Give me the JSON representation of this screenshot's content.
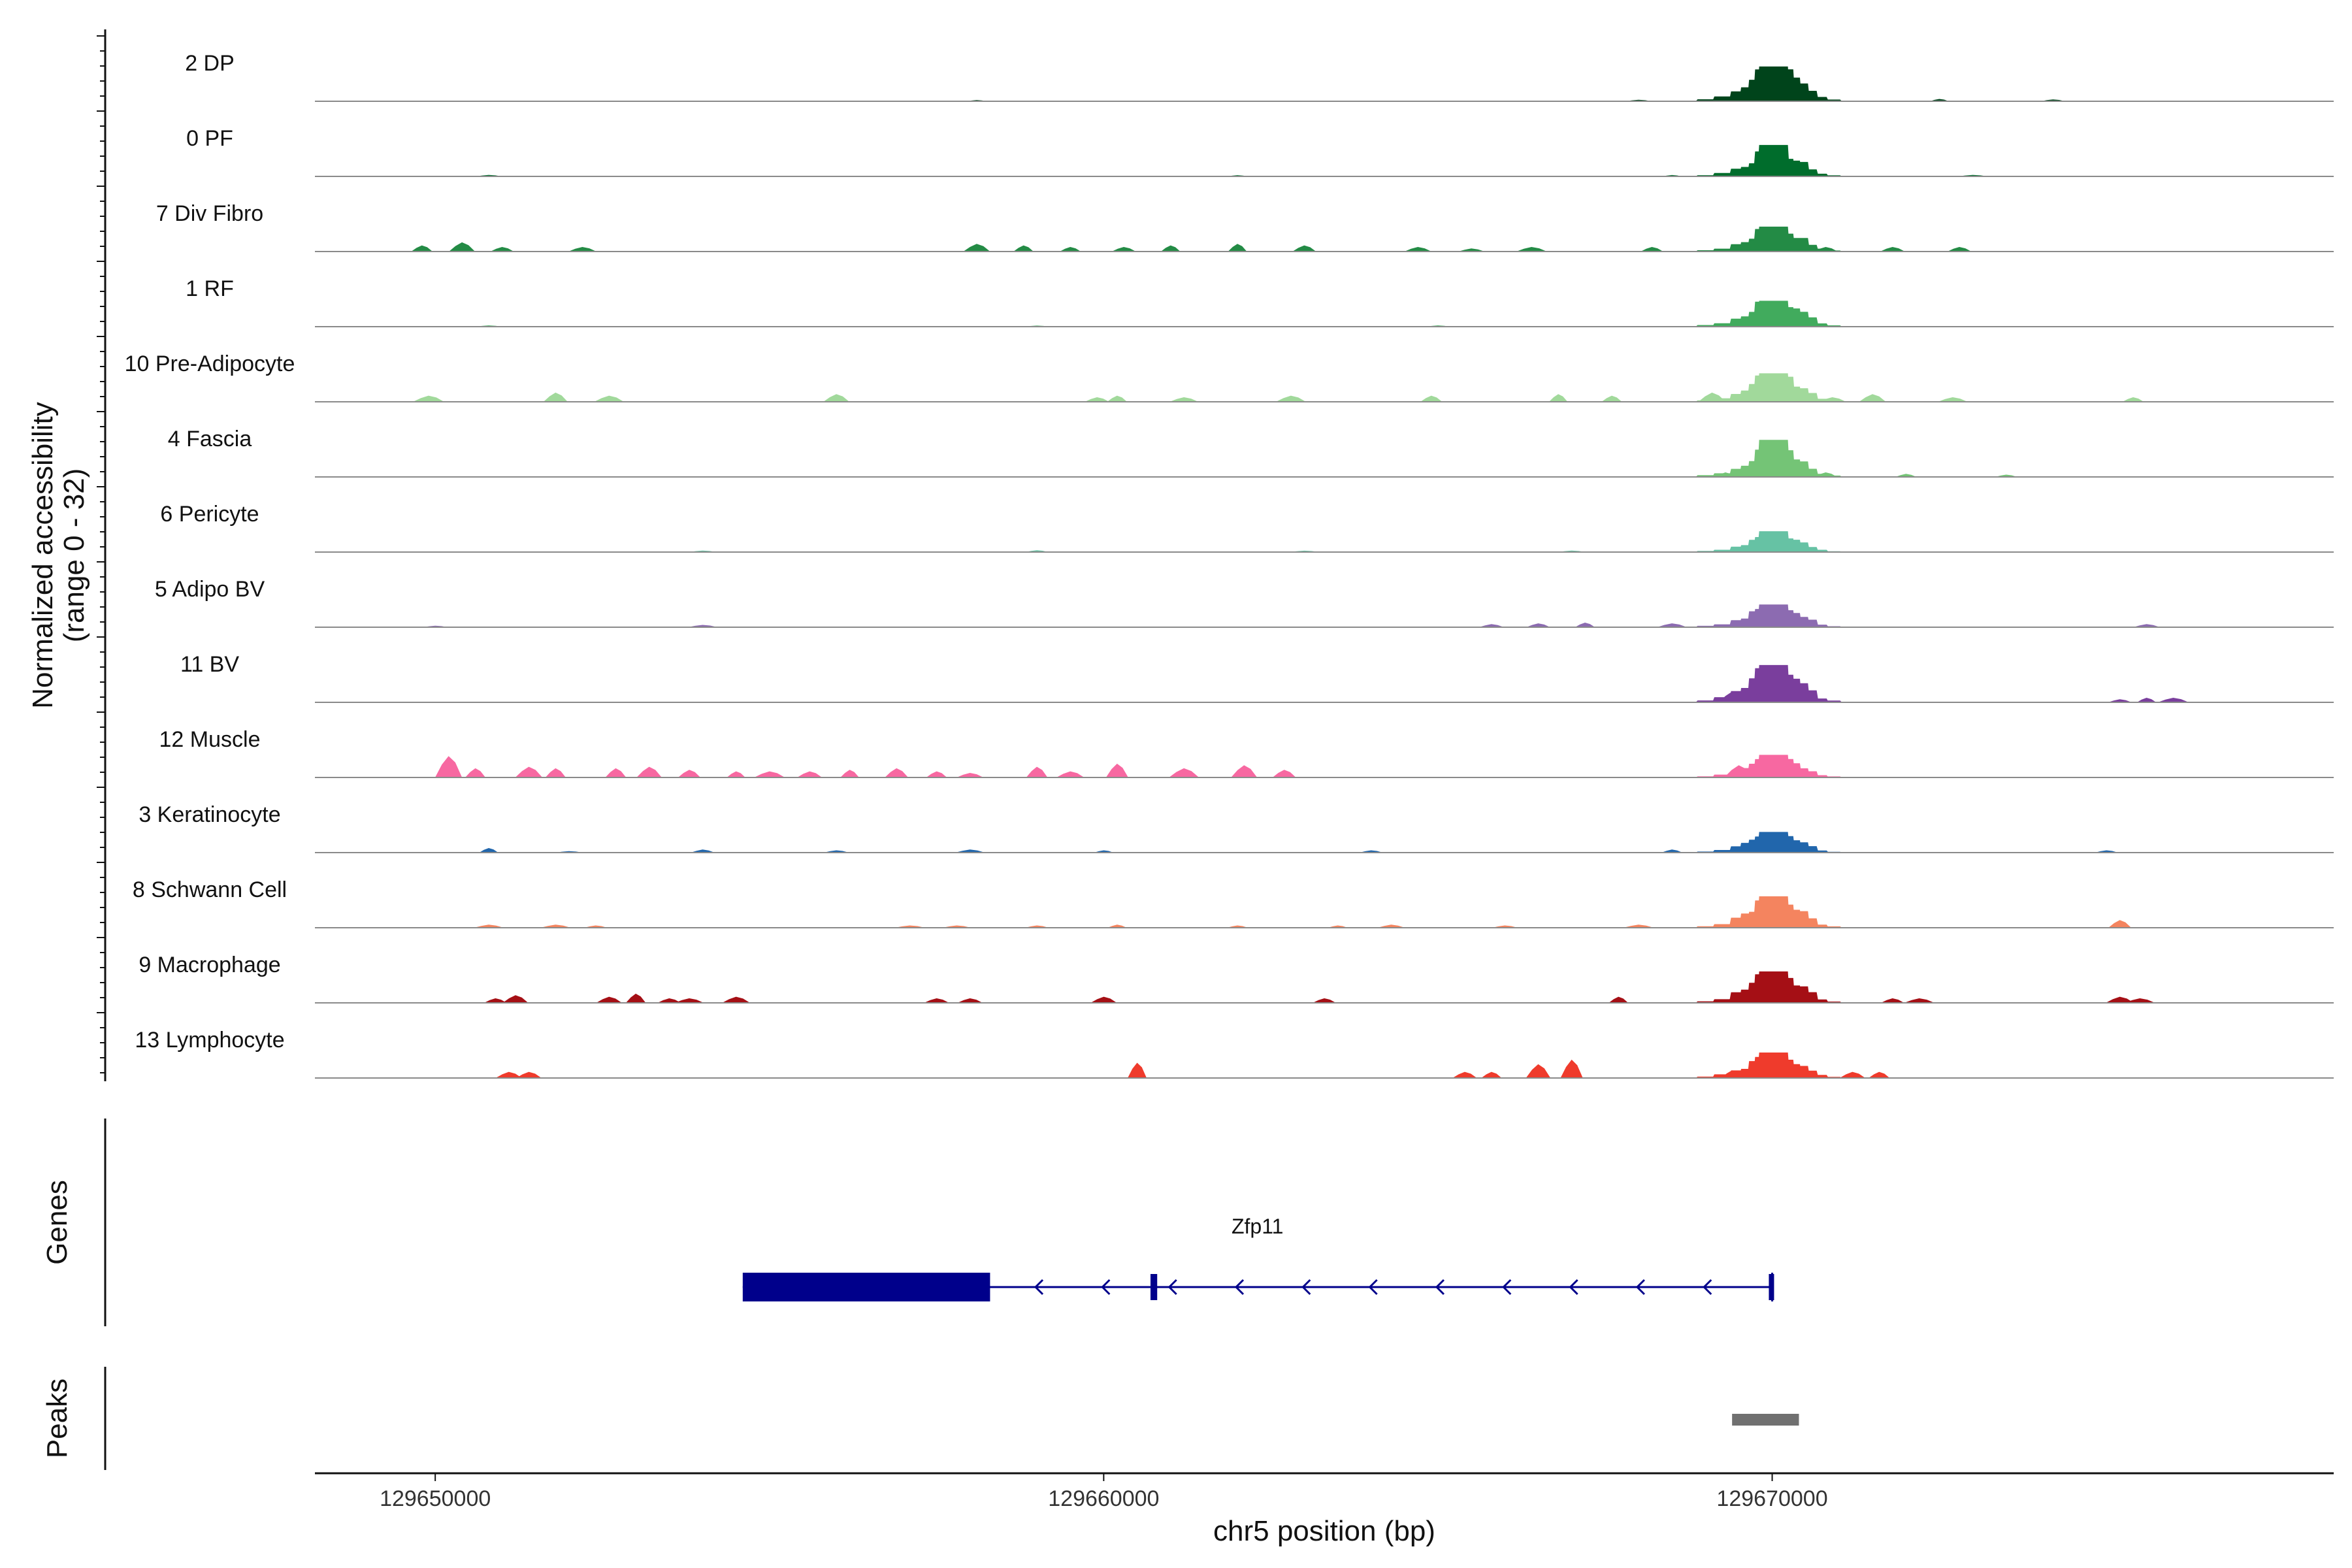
{
  "chart_data": {
    "type": "area",
    "title": "",
    "ylabel_line1": "Normalized accessibility",
    "ylabel_line2": "(range 0 - 32)",
    "yrange": [
      0,
      32
    ],
    "xlabel": "chr5 position (bp)",
    "xlim": [
      129648200,
      129678400
    ],
    "xticks": [
      129650000,
      129660000,
      129670000
    ],
    "xtick_labels": [
      "129650000",
      "129660000",
      "129670000"
    ],
    "tracks": [
      {
        "name": "2 DP",
        "color": "#00441b",
        "main_peak": 26,
        "minor": [
          [
            129672500,
            1.5
          ],
          [
            129674200,
            1.2
          ],
          [
            129658100,
            0.8
          ],
          [
            129668000,
            1.0
          ]
        ]
      },
      {
        "name": "0 PF",
        "color": "#006d2c",
        "main_peak": 18,
        "minor": [
          [
            129650800,
            1.0
          ],
          [
            129662000,
            0.8
          ],
          [
            129668500,
            0.9
          ],
          [
            129673000,
            1.0
          ]
        ]
      },
      {
        "name": "7 Div Fibro",
        "color": "#238b45",
        "main_peak": 17,
        "minor": [
          [
            129649800,
            4
          ],
          [
            129650400,
            6
          ],
          [
            129651000,
            3
          ],
          [
            129652200,
            3
          ],
          [
            129658100,
            5
          ],
          [
            129658800,
            4
          ],
          [
            129659500,
            3
          ],
          [
            129660300,
            3
          ],
          [
            129661000,
            4
          ],
          [
            129662000,
            5
          ],
          [
            129663000,
            4
          ],
          [
            129664700,
            3
          ],
          [
            129665500,
            2
          ],
          [
            129666400,
            3
          ],
          [
            129668200,
            3
          ],
          [
            129670800,
            3
          ],
          [
            129671800,
            3
          ],
          [
            129672800,
            3
          ]
        ]
      },
      {
        "name": "1 RF",
        "color": "#41ab5d",
        "main_peak": 19,
        "minor": [
          [
            129650800,
            0.8
          ],
          [
            129659000,
            0.7
          ],
          [
            129665000,
            0.8
          ],
          [
            129670200,
            0.6
          ]
        ]
      },
      {
        "name": "10 Pre-Adipocyte",
        "color": "#a1d99b",
        "main_peak": 20,
        "minor": [
          [
            129649900,
            4
          ],
          [
            129651800,
            6
          ],
          [
            129652600,
            4
          ],
          [
            129656000,
            5
          ],
          [
            129659900,
            3
          ],
          [
            129660200,
            4
          ],
          [
            129661200,
            3
          ],
          [
            129662800,
            4
          ],
          [
            129664900,
            4
          ],
          [
            129666800,
            5
          ],
          [
            129667600,
            4
          ],
          [
            129669100,
            6
          ],
          [
            129670900,
            3
          ],
          [
            129671500,
            5
          ],
          [
            129672700,
            3
          ],
          [
            129675400,
            3
          ]
        ]
      },
      {
        "name": "4 Fascia",
        "color": "#74c476",
        "main_peak": 22,
        "minor": [
          [
            129669300,
            3
          ],
          [
            129670800,
            3
          ],
          [
            129672000,
            2
          ],
          [
            129673500,
            1.5
          ]
        ]
      },
      {
        "name": "6 Pericyte",
        "color": "#66c2a4",
        "main_peak": 14,
        "minor": [
          [
            129654000,
            1
          ],
          [
            129659000,
            1.2
          ],
          [
            129663000,
            0.9
          ],
          [
            129667000,
            1
          ]
        ]
      },
      {
        "name": "5 Adipo BV",
        "color": "#8c6bb1",
        "main_peak": 17,
        "minor": [
          [
            129650000,
            1
          ],
          [
            129654000,
            1.5
          ],
          [
            129665800,
            2
          ],
          [
            129666500,
            2.5
          ],
          [
            129667200,
            3
          ],
          [
            129668500,
            2.5
          ],
          [
            129675600,
            2
          ]
        ]
      },
      {
        "name": "11 BV",
        "color": "#7a3e9d",
        "main_peak": 25,
        "minor": [
          [
            129669400,
            7
          ],
          [
            129669800,
            6
          ],
          [
            129675200,
            2
          ],
          [
            129675600,
            3
          ],
          [
            129676000,
            3
          ]
        ]
      },
      {
        "name": "12 Muscle",
        "color": "#f768a1",
        "main_peak": 15,
        "minor": [
          [
            129650200,
            14
          ],
          [
            129650600,
            6
          ],
          [
            129651400,
            7
          ],
          [
            129651800,
            6
          ],
          [
            129652700,
            6
          ],
          [
            129653200,
            7
          ],
          [
            129653800,
            5
          ],
          [
            129654500,
            4
          ],
          [
            129655000,
            4
          ],
          [
            129655600,
            4
          ],
          [
            129656200,
            5
          ],
          [
            129656900,
            6
          ],
          [
            129657500,
            4
          ],
          [
            129658000,
            3
          ],
          [
            129659000,
            7
          ],
          [
            129659500,
            4
          ],
          [
            129660200,
            9
          ],
          [
            129661200,
            6
          ],
          [
            129662100,
            8
          ],
          [
            129662700,
            5
          ],
          [
            129669500,
            8
          ]
        ]
      },
      {
        "name": "3 Keratinocyte",
        "color": "#2166ac",
        "main_peak": 15,
        "minor": [
          [
            129650800,
            3
          ],
          [
            129652000,
            1
          ],
          [
            129654000,
            2
          ],
          [
            129656000,
            1.5
          ],
          [
            129658000,
            2
          ],
          [
            129660000,
            1.5
          ],
          [
            129664000,
            1.5
          ],
          [
            129668500,
            2
          ],
          [
            129675000,
            1.5
          ]
        ]
      },
      {
        "name": "8 Schwann Cell",
        "color": "#f4845f",
        "main_peak": 22,
        "minor": [
          [
            129650800,
            2
          ],
          [
            129651800,
            2
          ],
          [
            129652400,
            1.5
          ],
          [
            129657100,
            1.5
          ],
          [
            129657800,
            1.5
          ],
          [
            129659000,
            1.5
          ],
          [
            129660200,
            2
          ],
          [
            129662000,
            1.5
          ],
          [
            129663500,
            1.5
          ],
          [
            129664300,
            2
          ],
          [
            129666000,
            1.5
          ],
          [
            129668000,
            2
          ],
          [
            129669500,
            3
          ],
          [
            129675200,
            5
          ]
        ]
      },
      {
        "name": "9 Macrophage",
        "color": "#a50f15",
        "main_peak": 22,
        "minor": [
          [
            129650900,
            3
          ],
          [
            129651200,
            5
          ],
          [
            129652600,
            4
          ],
          [
            129653000,
            6
          ],
          [
            129653500,
            3
          ],
          [
            129653800,
            3
          ],
          [
            129654500,
            4
          ],
          [
            129657500,
            3
          ],
          [
            129658000,
            3
          ],
          [
            129660000,
            4
          ],
          [
            129663300,
            3
          ],
          [
            129667700,
            4
          ],
          [
            129669400,
            3
          ],
          [
            129671800,
            3
          ],
          [
            129672200,
            3
          ],
          [
            129675200,
            4
          ],
          [
            129675500,
            3
          ]
        ]
      },
      {
        "name": "13 Lymphocyte",
        "color": "#ef3b2c",
        "main_peak": 18,
        "minor": [
          [
            129651100,
            4
          ],
          [
            129651400,
            4
          ],
          [
            129660500,
            10
          ],
          [
            129665400,
            4
          ],
          [
            129665800,
            4
          ],
          [
            129666500,
            9
          ],
          [
            129667000,
            12
          ],
          [
            129669400,
            5
          ],
          [
            129669800,
            5
          ],
          [
            129671200,
            4
          ],
          [
            129671600,
            4
          ]
        ]
      }
    ],
    "genes_panel_label": "Genes",
    "gene": {
      "name": "Zfp11",
      "strand": "-",
      "tx_start": 129654600,
      "tx_end": 129670000,
      "exons": [
        [
          129654600,
          129658300
        ],
        [
          129660700,
          129660800
        ],
        [
          129669950,
          129670000
        ]
      ],
      "color": "#00008b"
    },
    "peaks_panel_label": "Peaks",
    "peaks": [
      [
        129669400,
        129670400
      ]
    ],
    "peak_color": "#707070"
  }
}
